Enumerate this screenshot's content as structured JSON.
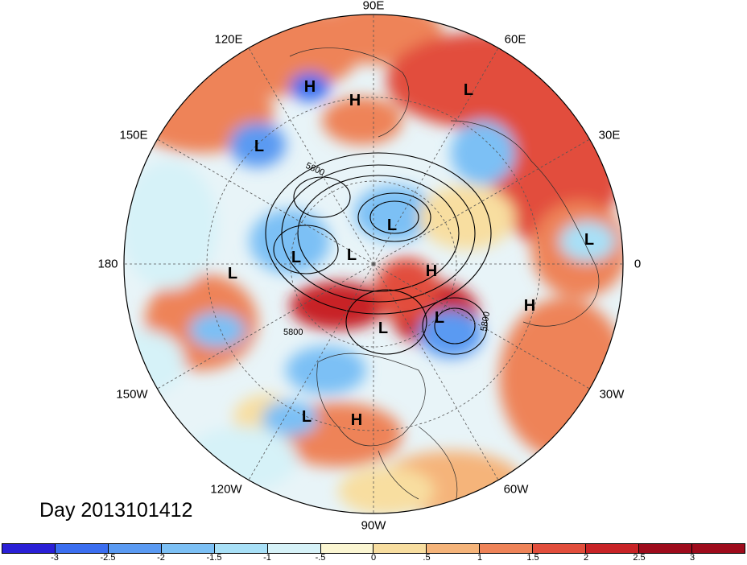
{
  "map": {
    "title": "Day 2013101412",
    "projection": "north-polar-stereographic",
    "longitude_labels": [
      "90E",
      "60E",
      "30E",
      "0",
      "30W",
      "60W",
      "90W",
      "120W",
      "150W",
      "180",
      "150E",
      "120E"
    ],
    "contour_label": "5800",
    "markers": [
      {
        "type": "L",
        "label": "L"
      },
      {
        "type": "H",
        "label": "H"
      },
      {
        "type": "L",
        "label": "L"
      },
      {
        "type": "L",
        "label": "L"
      },
      {
        "type": "L",
        "label": "L"
      },
      {
        "type": "H",
        "label": "H"
      },
      {
        "type": "L",
        "label": "L"
      },
      {
        "type": "L",
        "label": "L"
      },
      {
        "type": "L",
        "label": "L"
      },
      {
        "type": "H",
        "label": "H"
      },
      {
        "type": "L",
        "label": "L"
      },
      {
        "type": "L",
        "label": "L"
      },
      {
        "type": "H",
        "label": "H"
      },
      {
        "type": "L",
        "label": "L"
      },
      {
        "type": "H",
        "label": "H"
      }
    ]
  },
  "colorbar": {
    "tick_labels": [
      "-3",
      "-2.5",
      "-2",
      "-1.5",
      "-1",
      "-.5",
      "0",
      ".5",
      "1",
      "1.5",
      "2",
      "2.5",
      "3"
    ],
    "colors": [
      "#2a1fd6",
      "#3b6ef0",
      "#5a9af2",
      "#7cc0f5",
      "#a8e0f7",
      "#d6f2f8",
      "#fbf6d2",
      "#f8dea0",
      "#f5b47a",
      "#ee8358",
      "#e24e3c",
      "#c82326",
      "#9e0b1c"
    ]
  }
}
